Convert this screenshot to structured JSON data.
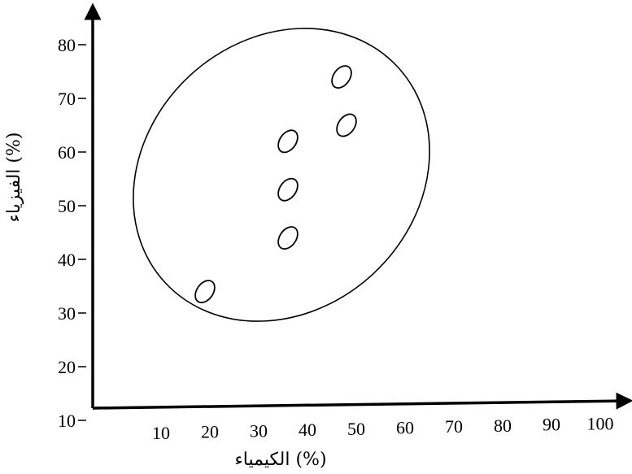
{
  "chart_data": {
    "type": "scatter",
    "xlabel": "الكيمياء (%)",
    "ylabel": "الفيزياء (%)",
    "x_ticks": [
      10,
      20,
      30,
      40,
      50,
      60,
      70,
      80,
      90,
      100
    ],
    "y_ticks": [
      10,
      20,
      30,
      40,
      50,
      60,
      70,
      80
    ],
    "grid": false,
    "points": [
      {
        "x": 19,
        "y": 34
      },
      {
        "x": 36,
        "y": 44
      },
      {
        "x": 36,
        "y": 53
      },
      {
        "x": 36,
        "y": 62
      },
      {
        "x": 48,
        "y": 65
      },
      {
        "x": 47,
        "y": 74
      }
    ],
    "cluster_ellipse": true
  },
  "colors": {
    "ink": "#000000",
    "background": "#ffffff"
  }
}
